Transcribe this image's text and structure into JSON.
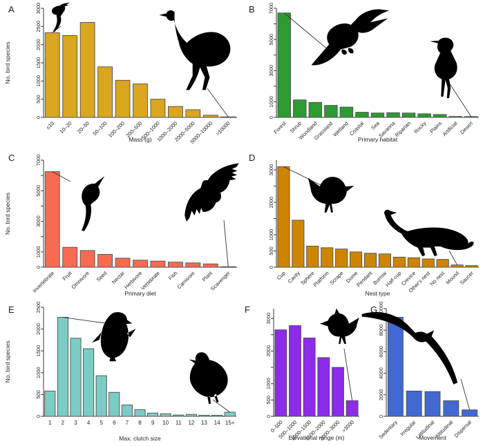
{
  "figure": {
    "background": "#ffffff",
    "description": "Seven bar-chart panels (A-G) of bird species counts by trait, each decorated with bird silhouettes"
  },
  "chart_data": [
    {
      "panel": "A",
      "type": "bar",
      "title": "",
      "xlabel": "Mass (g)",
      "ylabel": "No. bird species",
      "categories": [
        "≤10",
        "10–20",
        "20–50",
        "50–100",
        "100–200",
        "200–500",
        "500–1000",
        "1000–2000",
        "2000–5000",
        "5000–10000",
        ">10000"
      ],
      "values": [
        2330,
        2250,
        2610,
        1390,
        1020,
        920,
        500,
        300,
        210,
        60,
        15
      ],
      "ylim": [
        0,
        3000
      ],
      "yticks": [
        0,
        500,
        1000,
        1500,
        2000,
        2500,
        3000
      ],
      "ytick_labels": [
        "0",
        "500",
        "1000",
        "1500",
        "2000",
        "2500",
        "3000"
      ],
      "grid": false,
      "bar_color": "#DAA51F",
      "silhouettes": [
        {
          "icon": "perched-small-bird-icon",
          "points_to": "≤10"
        },
        {
          "icon": "ostrich-icon",
          "points_to": ">10000"
        }
      ]
    },
    {
      "panel": "B",
      "type": "bar",
      "title": "",
      "xlabel": "Primary habitat",
      "ylabel": "",
      "categories": [
        "Forest",
        "Shrub",
        "Woodland",
        "Grassland",
        "Wetland",
        "Coastal",
        "Sea",
        "Savanna",
        "Riparian",
        "Rocky",
        "Plains",
        "Artificial",
        "Desert"
      ],
      "values": [
        6700,
        1120,
        960,
        770,
        660,
        330,
        280,
        300,
        280,
        230,
        185,
        60,
        55
      ],
      "ylim": [
        0,
        7000
      ],
      "yticks": [
        0,
        1000,
        2000,
        3000,
        4000,
        5000,
        6000,
        7000
      ],
      "ytick_labels": [
        "0",
        "1000",
        "",
        "3000",
        "",
        "5000",
        "",
        "7000"
      ],
      "grid": false,
      "bar_color": "#2E9B32",
      "silhouettes": [
        {
          "icon": "hornbill-icon",
          "points_to": "Forest"
        },
        {
          "icon": "courser-icon",
          "points_to": "Desert"
        }
      ]
    },
    {
      "panel": "C",
      "type": "bar",
      "title": "",
      "xlabel": "Primary diet",
      "ylabel": "No. bird species",
      "categories": [
        "Invertebrate",
        "Fruit",
        "Omnivore",
        "Seed",
        "Nectar",
        "Herbivore",
        "Vertebrate",
        "Fish",
        "Carnivore",
        "Plant",
        "Scavenger"
      ],
      "values": [
        6250,
        1300,
        1090,
        840,
        590,
        460,
        400,
        330,
        280,
        215,
        35
      ],
      "ylim": [
        0,
        7000
      ],
      "yticks": [
        0,
        1000,
        2000,
        3000,
        4000,
        5000,
        6000,
        7000
      ],
      "ytick_labels": [
        "0",
        "1000",
        "",
        "3000",
        "",
        "5000",
        "",
        "7000"
      ],
      "grid": false,
      "bar_color": "#F96A52",
      "silhouettes": [
        {
          "icon": "bee-eater-icon",
          "points_to": "Invertebrate"
        },
        {
          "icon": "vulture-icon",
          "points_to": "Scavenger"
        }
      ]
    },
    {
      "panel": "D",
      "type": "bar",
      "title": "",
      "xlabel": "Nest type",
      "ylabel": "",
      "categories": [
        "Cup",
        "Cavity",
        "Sphere",
        "Platform",
        "Scrape",
        "Dome",
        "Pendant",
        "Burrow",
        "Half-cup",
        "Crevice",
        "Other's nest",
        "No nest",
        "Mound",
        "Saucer"
      ],
      "values": [
        3100,
        1450,
        650,
        600,
        560,
        470,
        430,
        410,
        310,
        290,
        255,
        240,
        70,
        50
      ],
      "ylim": [
        0,
        3300
      ],
      "yticks": [
        0,
        500,
        1000,
        1500,
        2000,
        2500,
        3000
      ],
      "ytick_labels": [
        "0",
        "500",
        "1000",
        "",
        "2000",
        "",
        "3000"
      ],
      "grid": false,
      "bar_color": "#CD8500",
      "silhouettes": [
        {
          "icon": "songbird-icon",
          "points_to": "Cup"
        },
        {
          "icon": "megapode-icon",
          "points_to": "Mound"
        }
      ]
    },
    {
      "panel": "E",
      "type": "bar",
      "title": "",
      "xlabel": "Max. clutch size",
      "ylabel": "No. bird species",
      "categories": [
        "1",
        "2",
        "3",
        "4",
        "5",
        "6",
        "7",
        "8",
        "9",
        "10",
        "11",
        "12",
        "13",
        "14",
        "15+"
      ],
      "values": [
        580,
        2270,
        1790,
        1550,
        930,
        550,
        260,
        155,
        75,
        60,
        30,
        45,
        25,
        25,
        95
      ],
      "ylim": [
        0,
        2500
      ],
      "yticks": [
        0,
        500,
        1000,
        1500,
        2000,
        2500
      ],
      "ytick_labels": [
        "0",
        "500",
        "1000",
        "1500",
        "2000",
        "2500"
      ],
      "grid": false,
      "bar_color": "#7BCCC4",
      "silhouettes": [
        {
          "icon": "penguin-icon",
          "points_to": "2"
        },
        {
          "icon": "quail-icon",
          "points_to": "15+"
        }
      ]
    },
    {
      "panel": "F",
      "type": "bar",
      "title": "",
      "xlabel": "Elevational range (m)",
      "ylabel": "",
      "categories": [
        "0–500",
        "500–1000",
        "1000–1500",
        "1500–2000",
        "2000–3000",
        ">3000"
      ],
      "values": [
        2650,
        2780,
        2400,
        1800,
        1500,
        480
      ],
      "ylim": [
        0,
        3300
      ],
      "yticks": [
        0,
        500,
        1000,
        1500,
        2000,
        2500,
        3000
      ],
      "ytick_labels": [
        "0",
        "500",
        "1000",
        "",
        "2000",
        "",
        "3000"
      ],
      "grid": false,
      "bar_color": "#8C2BE8",
      "silhouettes": [
        {
          "icon": "lark-icon",
          "points_to": ">3000"
        }
      ]
    },
    {
      "panel": "G",
      "type": "bar",
      "title": "",
      "xlabel": "Movement",
      "ylabel": "",
      "categories": [
        "Sedentary",
        "Irregular",
        "Latitudinal",
        "Altitudinal",
        "Dispersal"
      ],
      "values": [
        9200,
        2350,
        2300,
        1450,
        600
      ],
      "ylim": [
        0,
        10000
      ],
      "yticks": [
        0,
        2000,
        4000,
        6000,
        8000,
        10000
      ],
      "ytick_labels": [
        "0",
        "2000",
        "4000",
        "6000",
        "8000",
        "10000"
      ],
      "grid": false,
      "bar_color": "#4169D1",
      "silhouettes": [
        {
          "icon": "albatross-icon",
          "points_to": "Dispersal"
        }
      ]
    }
  ]
}
